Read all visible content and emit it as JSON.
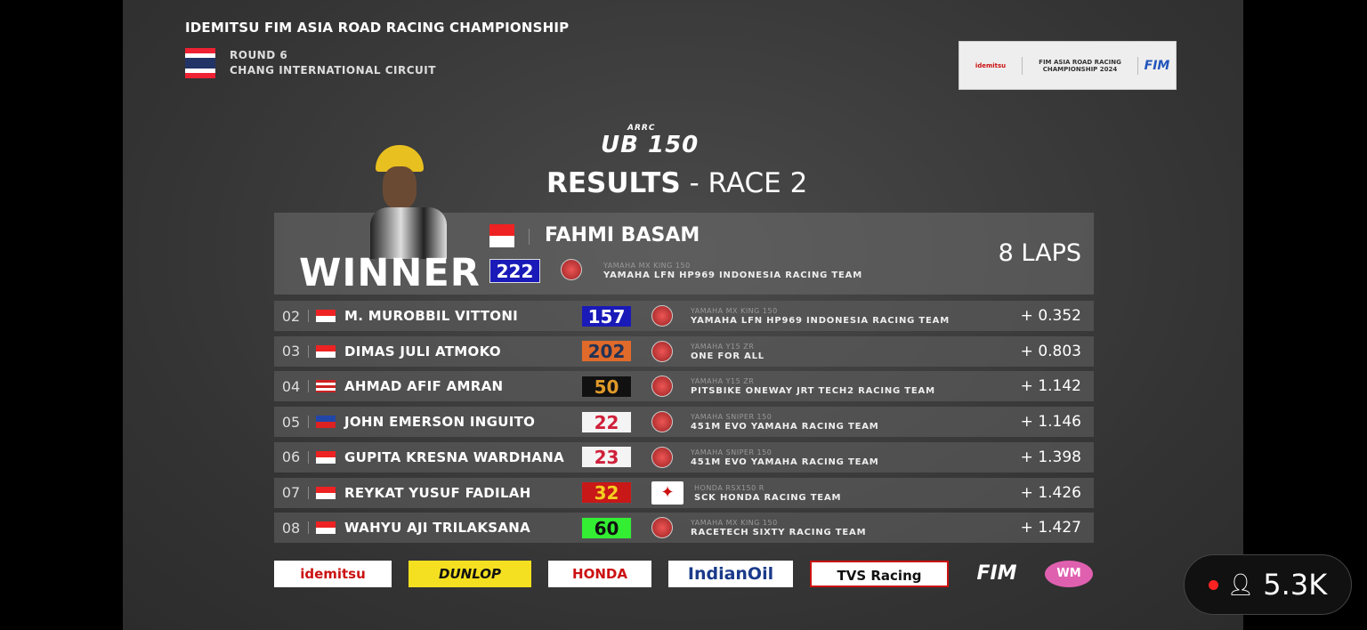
{
  "header": {
    "championship": "IDEMITSU FIM ASIA ROAD RACING CHAMPIONSHIP",
    "round": "ROUND 6",
    "circuit": "CHANG INTERNATIONAL CIRCUIT",
    "logo_idemitsu": "idemitsu",
    "logo_arrc": "FIM ASIA ROAD RACING CHAMPIONSHIP 2024",
    "logo_fim": "FIM"
  },
  "class_logo": {
    "top": "ARRC",
    "main": "UB 150"
  },
  "title": {
    "main": "RESULTS",
    "sub": " - RACE 2"
  },
  "winner": {
    "label": "WINNER",
    "name": "FAHMI BASAM",
    "number": "222",
    "number_bg": "#1a1ab8",
    "number_fg": "#ffffff",
    "bike": "YAMAHA MX KING 150",
    "team": "YAMAHA LFN HP969 INDONESIA RACING TEAM",
    "laps": "8 LAPS",
    "flag": "id"
  },
  "results": [
    {
      "pos": "02",
      "flag": "id",
      "name": "M. MUROBBIL VITTONI",
      "number": "157",
      "bg": "#1a1ab8",
      "fg": "#ffffff",
      "brand": "yamaha",
      "bike": "YAMAHA MX KING 150",
      "team": "YAMAHA LFN HP969 INDONESIA RACING TEAM",
      "gap": "+ 0.352"
    },
    {
      "pos": "03",
      "flag": "id",
      "name": "DIMAS JULI ATMOKO",
      "number": "202",
      "bg": "#e06a2a",
      "fg": "#223355",
      "brand": "yamaha",
      "bike": "YAMAHA Y15 ZR",
      "team": "ONE FOR ALL",
      "gap": "+ 0.803"
    },
    {
      "pos": "04",
      "flag": "my",
      "name": "AHMAD AFIF AMRAN",
      "number": "50",
      "bg": "#111111",
      "fg": "#e09a2a",
      "brand": "yamaha",
      "bike": "YAMAHA Y15 ZR",
      "team": "PITSBIKE ONEWAY JRT TECH2 RACING TEAM",
      "gap": "+ 1.142"
    },
    {
      "pos": "05",
      "flag": "ph",
      "name": "JOHN EMERSON INGUITO",
      "number": "22",
      "bg": "#f4f4f4",
      "fg": "#d0203a",
      "brand": "yamaha",
      "bike": "YAMAHA SNIPER 150",
      "team": "451M EVO YAMAHA RACING TEAM",
      "gap": "+ 1.146"
    },
    {
      "pos": "06",
      "flag": "id",
      "name": "GUPITA KRESNA WARDHANA",
      "number": "23",
      "bg": "#f4f4f4",
      "fg": "#d0203a",
      "brand": "yamaha",
      "bike": "YAMAHA SNIPER 150",
      "team": "451M EVO YAMAHA RACING TEAM",
      "gap": "+ 1.398"
    },
    {
      "pos": "07",
      "flag": "id",
      "name": "REYKAT YUSUF FADILAH",
      "number": "32",
      "bg": "#c81818",
      "fg": "#f2d020",
      "brand": "honda",
      "bike": "HONDA RSX150 R",
      "team": "SCK HONDA RACING TEAM",
      "gap": "+ 1.426"
    },
    {
      "pos": "08",
      "flag": "id",
      "name": "WAHYU AJI TRILAKSANA",
      "number": "60",
      "bg": "#33ee33",
      "fg": "#111111",
      "brand": "yamaha",
      "bike": "YAMAHA MX KING 150",
      "team": "RACETECH SIXTY RACING TEAM",
      "gap": "+ 1.427"
    }
  ],
  "sponsors": [
    "idemitsu",
    "DUNLOP",
    "HONDA",
    "IndianOil",
    "TVS Racing",
    "FIM",
    "WM"
  ],
  "viewers": {
    "count": "5.3K",
    "live_color": "#ff2222"
  }
}
